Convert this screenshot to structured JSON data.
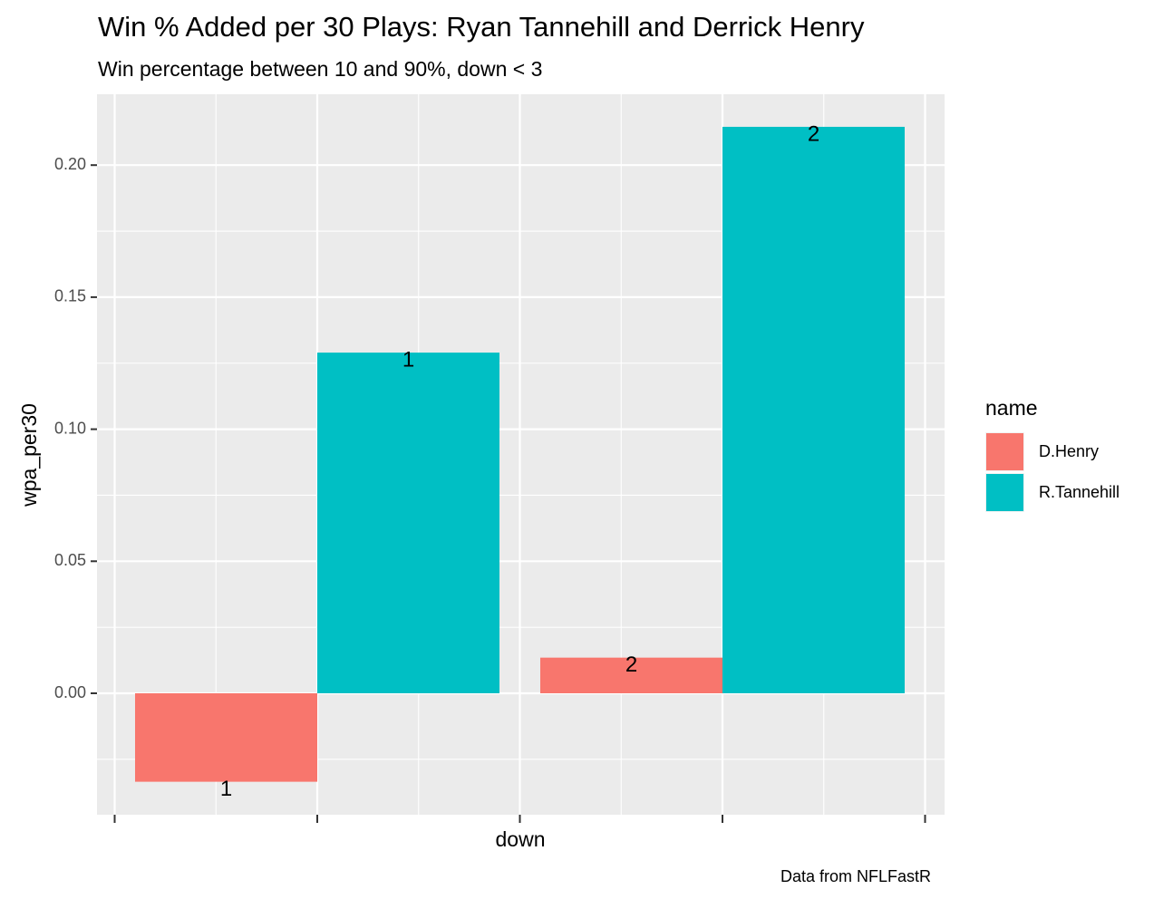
{
  "title": "Win % Added per 30 Plays: Ryan Tannehill and Derrick Henry",
  "subtitle": "Win percentage between 10 and 90%, down < 3",
  "caption": "Data from NFLFastR",
  "chart_data": {
    "type": "bar",
    "xlabel": "down",
    "ylabel": "wpa_per30",
    "ylim": [
      -0.045,
      0.225
    ],
    "yticks": [
      0.0,
      0.05,
      0.1,
      0.15,
      0.2
    ],
    "ytick_labels": [
      "0.00",
      "0.05",
      "0.10",
      "0.15",
      "0.20"
    ],
    "xlim": [
      0.5,
      2.5
    ],
    "grid": true,
    "legend": {
      "title": "name",
      "placement": "right"
    },
    "series": [
      {
        "name": "D.Henry",
        "color": "#F8766D",
        "points": [
          {
            "down": 1,
            "value": -0.0335,
            "label": "1"
          },
          {
            "down": 2,
            "value": 0.0135,
            "label": "2"
          }
        ]
      },
      {
        "name": "R.Tannehill",
        "color": "#00BFC4",
        "points": [
          {
            "down": 1,
            "value": 0.129,
            "label": "1"
          },
          {
            "down": 2,
            "value": 0.2145,
            "label": "2"
          }
        ]
      }
    ]
  }
}
